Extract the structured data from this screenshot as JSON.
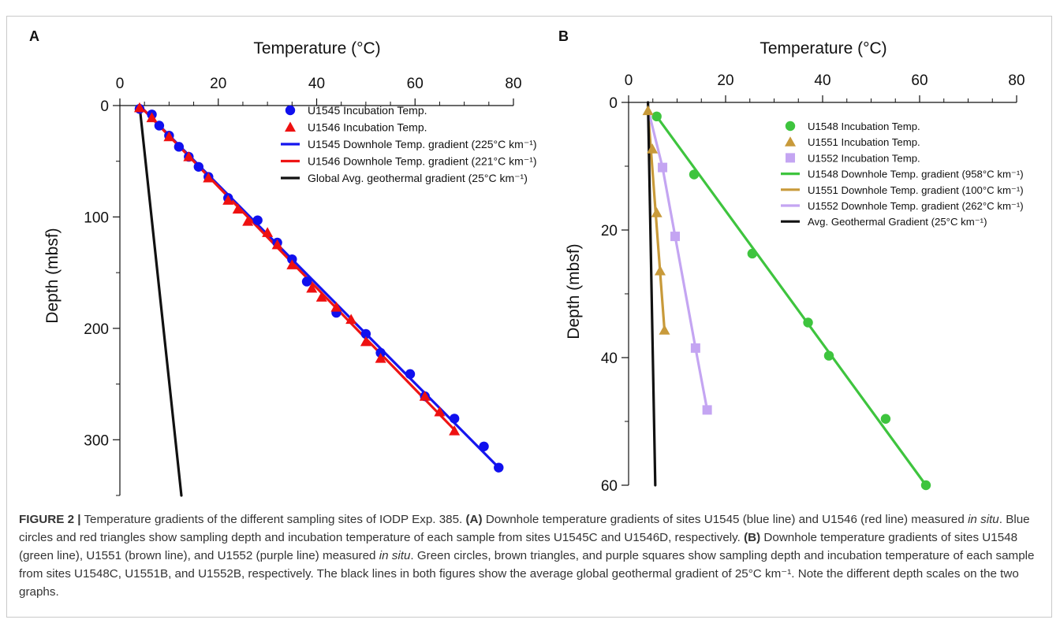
{
  "caption": {
    "figure_label": "FIGURE 2 |",
    "intro": "Temperature gradients of the different sampling sites of IODP Exp. 385.",
    "a_label": "(A)",
    "a_text1": "Downhole temperature gradients of sites U1545 (blue line) and U1546 (red line) measured",
    "in_situ": "in situ",
    "a_text2": ". Blue circles and red triangles show sampling depth and incubation temperature of each sample from sites U1545C and U1546D, respectively.",
    "b_label": "(B)",
    "b_text1": "Downhole temperature gradients of sites U1548 (green line), U1551 (brown line), and U1552 (purple line) measured",
    "b_text2": ". Green circles, brown triangles, and purple squares show sampling depth and incubation temperature of each sample from sites U1548C, U1551B, and U1552B, respectively. The black lines in both figures show the average global geothermal gradient of 25°C km⁻¹. Note the different depth scales on the two graphs."
  },
  "chart_data": [
    {
      "panel_label": "A",
      "type": "scatter",
      "xlabel": "Temperature (°C)",
      "ylabel": "Depth (mbsf)",
      "xlim": [
        0,
        80
      ],
      "ylim": [
        0,
        350
      ],
      "y_inverted": true,
      "x_axis_position": "top",
      "xticks": [
        0,
        20,
        40,
        60,
        80
      ],
      "yticks": [
        0,
        100,
        200,
        300
      ],
      "grid": false,
      "legend_position": "top-right",
      "series": [
        {
          "name": "U1545 Incubation Temp.",
          "kind": "points",
          "marker": "circle",
          "color": "#1010ee",
          "points": [
            [
              4,
              3
            ],
            [
              6.5,
              8
            ],
            [
              8,
              18
            ],
            [
              10,
              27
            ],
            [
              12,
              37
            ],
            [
              14,
              46
            ],
            [
              16,
              55
            ],
            [
              18,
              64
            ],
            [
              22,
              83
            ],
            [
              28,
              103
            ],
            [
              32,
              123
            ],
            [
              35,
              138
            ],
            [
              38,
              158
            ],
            [
              44,
              186
            ],
            [
              50,
              205
            ],
            [
              53,
              222
            ],
            [
              59,
              241
            ],
            [
              62,
              261
            ],
            [
              68,
              281
            ],
            [
              74,
              306
            ],
            [
              77,
              325
            ]
          ]
        },
        {
          "name": "U1546 Incubation Temp.",
          "kind": "points",
          "marker": "triangle",
          "color": "#ee1010",
          "points": [
            [
              4,
              2
            ],
            [
              6.5,
              11
            ],
            [
              10,
              28
            ],
            [
              14,
              46
            ],
            [
              18,
              65
            ],
            [
              22,
              85
            ],
            [
              24,
              93
            ],
            [
              26,
              104
            ],
            [
              30,
              114
            ],
            [
              32,
              125
            ],
            [
              35,
              143
            ],
            [
              39,
              164
            ],
            [
              41,
              172
            ],
            [
              44,
              181
            ],
            [
              47,
              192
            ],
            [
              50,
              212
            ],
            [
              53,
              227
            ],
            [
              62,
              261
            ],
            [
              65,
              275
            ],
            [
              68,
              292
            ]
          ]
        },
        {
          "name": "U1545 Downhole Temp. gradient (225°C km⁻¹)",
          "kind": "line",
          "color": "#1515ee",
          "points": [
            [
              4,
              0
            ],
            [
              77,
              325
            ]
          ]
        },
        {
          "name": "U1546 Downhole Temp. gradient (221°C km⁻¹)",
          "kind": "line",
          "color": "#ee1515",
          "points": [
            [
              4,
              0
            ],
            [
              68,
              291
            ]
          ]
        },
        {
          "name": "Global Avg. geothermal gradient (25°C km⁻¹)",
          "kind": "line",
          "color": "#111111",
          "points": [
            [
              4,
              0
            ],
            [
              12.5,
              350
            ]
          ]
        }
      ]
    },
    {
      "panel_label": "B",
      "type": "scatter",
      "xlabel": "Temperature (°C)",
      "ylabel": "Depth (mbsf)",
      "xlim": [
        0,
        80
      ],
      "ylim": [
        0,
        60
      ],
      "y_inverted": true,
      "x_axis_position": "top",
      "xticks": [
        0,
        20,
        40,
        60,
        80
      ],
      "yticks": [
        0,
        20,
        40,
        60
      ],
      "grid": false,
      "legend_position": "top-right",
      "series": [
        {
          "name": "U1548 Incubation Temp.",
          "kind": "points",
          "marker": "circle",
          "color": "#3ec43e",
          "points": [
            [
              5.8,
              2.2
            ],
            [
              13.5,
              11.3
            ],
            [
              25.5,
              23.7
            ],
            [
              37,
              34.5
            ],
            [
              41.3,
              39.7
            ],
            [
              53,
              49.6
            ],
            [
              61.3,
              60
            ]
          ]
        },
        {
          "name": "U1551 Incubation Temp.",
          "kind": "points",
          "marker": "triangle",
          "color": "#c89a3a",
          "points": [
            [
              4,
              1.3
            ],
            [
              4.9,
              7.3
            ],
            [
              5.8,
              17.3
            ],
            [
              6.5,
              26.4
            ],
            [
              7.4,
              35.7
            ]
          ]
        },
        {
          "name": "U1552 Incubation Temp.",
          "kind": "points",
          "marker": "square",
          "color": "#c4a5f2",
          "points": [
            [
              7,
              10.2
            ],
            [
              9.6,
              21
            ],
            [
              13.8,
              38.5
            ],
            [
              16.2,
              48.2
            ]
          ]
        },
        {
          "name": "U1548 Downhole Temp. gradient (958°C km⁻¹)",
          "kind": "line",
          "color": "#3ec43e",
          "points": [
            [
              5.8,
              2.2
            ],
            [
              61.3,
              60
            ]
          ]
        },
        {
          "name": "U1551 Downhole Temp. gradient (100°C km⁻¹)",
          "kind": "line",
          "color": "#c89a3a",
          "points": [
            [
              4,
              1.3
            ],
            [
              7.4,
              35.7
            ]
          ]
        },
        {
          "name": "U1552 Downhole Temp. gradient (262°C km⁻¹)",
          "kind": "line",
          "color": "#c4a5f2",
          "points": [
            [
              4,
              1
            ],
            [
              7,
              10.2
            ],
            [
              9.6,
              21
            ],
            [
              13.8,
              38.5
            ],
            [
              16.2,
              48.2
            ]
          ]
        },
        {
          "name": "Avg. Geothermal Gradient (25°C km⁻¹)",
          "kind": "line",
          "color": "#111111",
          "points": [
            [
              4,
              0
            ],
            [
              5.5,
              60
            ]
          ]
        }
      ]
    }
  ]
}
